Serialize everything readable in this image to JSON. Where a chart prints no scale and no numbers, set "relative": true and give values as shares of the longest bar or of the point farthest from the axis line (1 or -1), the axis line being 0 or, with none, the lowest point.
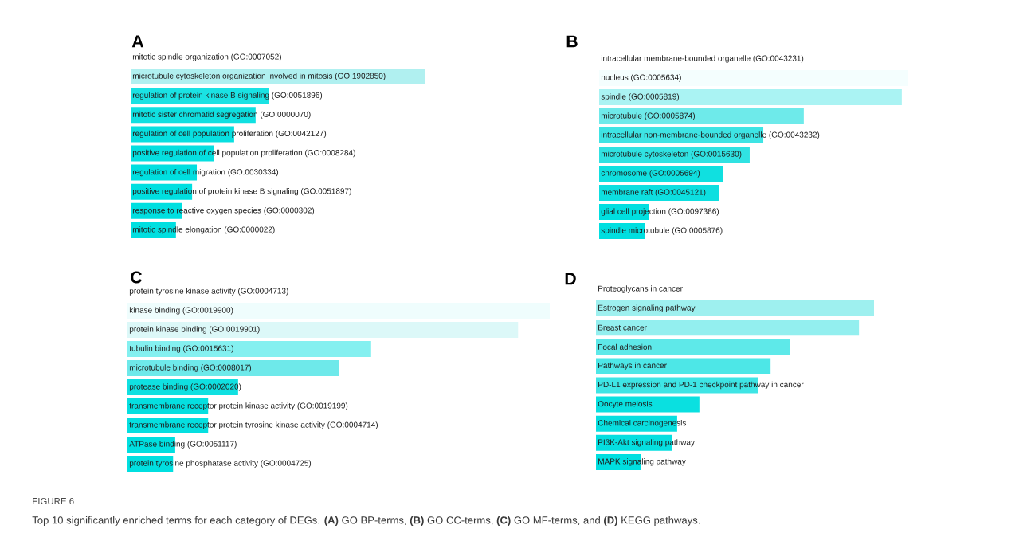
{
  "chart_data": [
    {
      "type": "bar",
      "orientation": "horizontal",
      "relative": true,
      "title": "A",
      "categories": [
        "mitotic spindle organization (GO:0007052)",
        "microtubule cytoskeleton organization involved in mitosis (GO:1902850)",
        "regulation of protein kinase B signaling (GO:0051896)",
        "mitotic sister chromatid segregation (GO:0000070)",
        "regulation of cell population proliferation (GO:0042127)",
        "positive regulation of cell population proliferation (GO:0008284)",
        "regulation of cell migration (GO:0030334)",
        "positive regulation of protein kinase B signaling (GO:0051897)",
        "response to reactive oxygen species (GO:0000302)",
        "mitotic spindle elongation (GO:0000022)"
      ],
      "values": [
        null,
        1,
        0.469,
        0.425,
        0.352,
        0.282,
        0.225,
        0.209,
        0.176,
        0.154
      ],
      "colors": [
        null,
        "#b0f0f0",
        "#1ae2e3",
        "#10e0e1",
        "#08dfe0",
        "#05dfe0",
        "#00dfe0",
        "#00dfe0",
        "#00dfe0",
        "#00dfe0"
      ],
      "annotations": [
        "FIGURE 6",
        "Top 10 significantly enriched terms for each category of DEGs. **(A)** GO BP-terms, **(B)** GO CC-terms, **(C)** GO MF-terms, and **(D)** KEGG pathways."
      ]
    },
    {
      "type": "bar",
      "orientation": "horizontal",
      "relative": true,
      "title": "B",
      "categories": [
        "intracellular membrane-bounded organelle (GO:0043231)",
        "nucleus (GO:0005634)",
        "spindle (GO:0005819)",
        "microtubule (GO:0005874)",
        "intracellular non-membrane-bounded organelle (GO:0043232)",
        "microtubule cytoskeleton (GO:0015630)",
        "chromosome (GO:0005694)",
        "membrane raft (GO:0045121)",
        "glial cell projection (GO:0097386)",
        "spindle microtubule (GO:0005876)"
      ],
      "values": [
        null,
        1,
        0.979,
        0.662,
        0.531,
        0.487,
        0.402,
        0.389,
        0.16,
        0.147
      ],
      "colors": [
        null,
        "#f4fefe",
        "#aaf3f3",
        "#6eeaea",
        "#3ee4e4",
        "#30e2e2",
        "#10e0e0",
        "#0ddfe0",
        "#00dfe0",
        "#00dfe0"
      ]
    },
    {
      "type": "bar",
      "orientation": "horizontal",
      "relative": true,
      "title": "C",
      "categories": [
        "protein tyrosine kinase activity (GO:0004713)",
        "kinase binding (GO:0019900)",
        "protein kinase binding (GO:0019901)",
        "tubulin binding (GO:0015631)",
        "microtubule binding (GO:0008017)",
        "protease binding (GO:0002020)",
        "transmembrane receptor protein kinase activity (GO:0019199)",
        "transmembrane receptor protein tyrosine kinase activity (GO:0004714)",
        "ATPase binding (GO:0051117)",
        "protein tyrosine phosphatase activity (GO:0004725)"
      ],
      "values": [
        null,
        1,
        0.925,
        0.577,
        0.5,
        0.262,
        0.191,
        0.191,
        0.113,
        0.108
      ],
      "colors": [
        null,
        "#effdfd",
        "#dcf8f8",
        "#84f0f0",
        "#6ee9ea",
        "#10e0e1",
        "#05dfe0",
        "#05dfe0",
        "#00dfe0",
        "#00dfe0"
      ]
    },
    {
      "type": "bar",
      "orientation": "horizontal",
      "relative": true,
      "title": "D",
      "categories": [
        "Proteoglycans in cancer",
        "Estrogen signaling pathway",
        "Breast cancer",
        "Focal adhesion",
        "Pathways in cancer",
        "PD-L1 expression and PD-1 checkpoint pathway in cancer",
        "Oocyte meiosis",
        "Chemical carcinogenesis",
        "PI3K-Akt signaling pathway",
        "MAPK signaling pathway"
      ],
      "values": [
        null,
        1,
        0.946,
        0.699,
        0.628,
        0.582,
        0.372,
        0.292,
        0.275,
        0.163
      ],
      "colors": [
        null,
        "#9ef0ef",
        "#93efef",
        "#5ee9e9",
        "#4de7e7",
        "#3ee5e5",
        "#0ae0e0",
        "#08dfe0",
        "#05dfe0",
        "#00dfe0"
      ]
    }
  ]
}
